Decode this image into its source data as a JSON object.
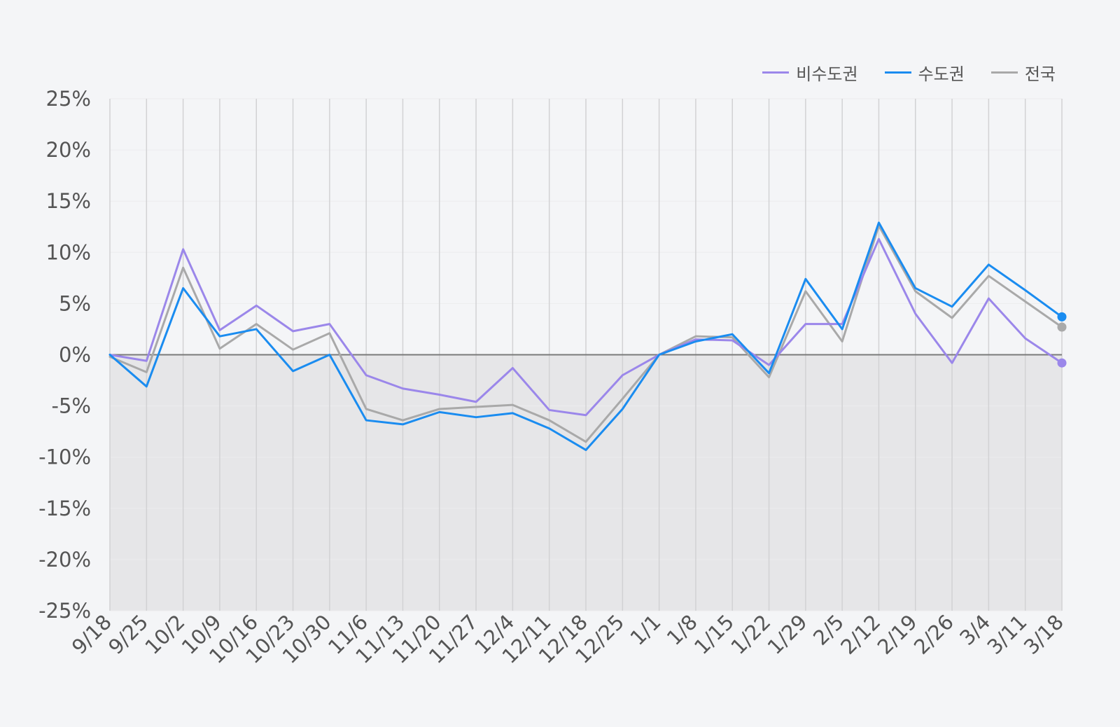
{
  "chart_data": {
    "type": "line",
    "title": "",
    "xlabel": "",
    "ylabel": "",
    "categories": [
      "9/18",
      "9/25",
      "10/2",
      "10/9",
      "10/16",
      "10/23",
      "10/30",
      "11/6",
      "11/13",
      "11/20",
      "11/27",
      "12/4",
      "12/11",
      "12/18",
      "12/25",
      "1/1",
      "1/8",
      "1/15",
      "1/22",
      "1/29",
      "2/5",
      "2/12",
      "2/19",
      "2/26",
      "3/4",
      "3/11",
      "3/18"
    ],
    "ylim": [
      -25,
      25
    ],
    "y_ticks": [
      25,
      20,
      15,
      10,
      5,
      0,
      -5,
      -10,
      -15,
      -20,
      -25
    ],
    "y_tick_labels": [
      "25%",
      "20%",
      "15%",
      "10%",
      "5%",
      "0%",
      "-5%",
      "-10%",
      "-15%",
      "-20%",
      "-25%"
    ],
    "grid": true,
    "legend_position": "top-right",
    "negative_region_shaded": true,
    "series": [
      {
        "name": "비수도권",
        "color": "#9b87ea",
        "values": [
          0,
          -0.6,
          10.3,
          2.4,
          4.8,
          2.3,
          3.0,
          -2.0,
          -3.3,
          -3.9,
          -4.6,
          -1.3,
          -5.4,
          -5.9,
          -2.0,
          0,
          1.5,
          1.4,
          -1.0,
          3.0,
          3.0,
          11.3,
          4.0,
          -0.8,
          5.5,
          1.6,
          -0.8
        ]
      },
      {
        "name": "수도권",
        "color": "#1a8cf0",
        "values": [
          0,
          -3.1,
          6.5,
          1.8,
          2.5,
          -1.6,
          0,
          -6.4,
          -6.8,
          -5.6,
          -6.1,
          -5.7,
          -7.2,
          -9.3,
          -5.3,
          0,
          1.3,
          2.0,
          -1.8,
          7.4,
          2.5,
          12.9,
          6.5,
          4.7,
          8.8,
          6.3,
          3.7
        ]
      },
      {
        "name": "전국",
        "color": "#a9a9a9",
        "values": [
          -0.2,
          -1.7,
          8.5,
          0.6,
          3.0,
          0.5,
          2.1,
          -5.3,
          -6.4,
          -5.3,
          -5.1,
          -4.9,
          -6.4,
          -8.5,
          -4.3,
          0,
          1.8,
          1.7,
          -2.2,
          6.2,
          1.3,
          12.6,
          6.2,
          3.6,
          7.7,
          5.2,
          2.7
        ]
      }
    ]
  }
}
